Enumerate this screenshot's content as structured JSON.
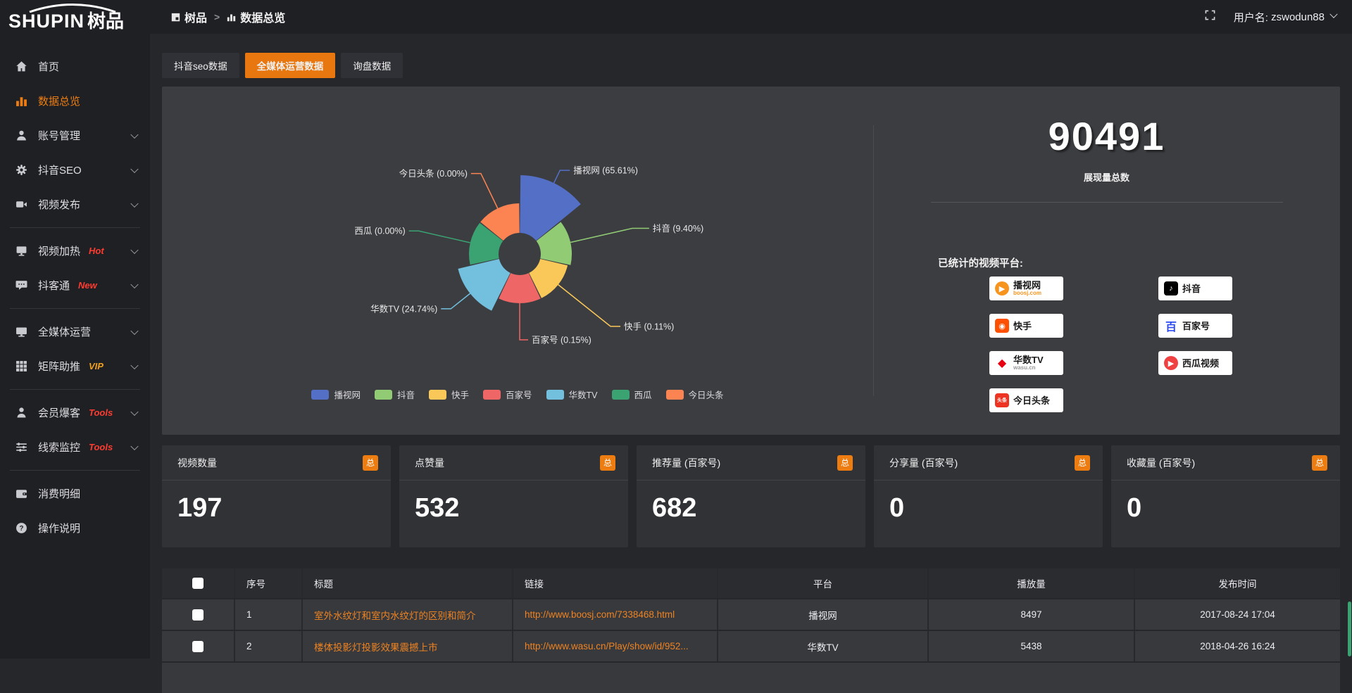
{
  "app": {
    "logo_text": "SHUPIN",
    "logo_suffix": "树品",
    "accent_color": "#ed7d11"
  },
  "header": {
    "breadcrumb": {
      "app": "树品",
      "page": "数据总览"
    },
    "username_label": "用户名:",
    "username": "zswodun88"
  },
  "sidebar": {
    "items": [
      {
        "label": "首页",
        "icon": "home-icon",
        "active": false,
        "chevron": false,
        "divider_after": false
      },
      {
        "label": "数据总览",
        "icon": "bar-chart-icon",
        "active": true,
        "chevron": false,
        "divider_after": false
      },
      {
        "label": "账号管理",
        "icon": "user-icon",
        "active": false,
        "chevron": true,
        "divider_after": false
      },
      {
        "label": "抖音SEO",
        "icon": "gear-icon",
        "active": false,
        "chevron": true,
        "divider_after": false
      },
      {
        "label": "视频发布",
        "icon": "video-camera-icon",
        "active": false,
        "chevron": true,
        "divider_after": true
      },
      {
        "label": "视频加热",
        "icon": "screen-icon",
        "badge": "Hot",
        "badge_color": "#ff3b30",
        "active": false,
        "chevron": true,
        "divider_after": false
      },
      {
        "label": "抖客通",
        "icon": "comment-icon",
        "badge": "New",
        "badge_color": "#ff3b30",
        "active": false,
        "chevron": true,
        "divider_after": true
      },
      {
        "label": "全媒体运营",
        "icon": "monitor-icon",
        "active": false,
        "chevron": true,
        "divider_after": false
      },
      {
        "label": "矩阵助推",
        "icon": "grid-icon",
        "badge": "VIP",
        "badge_color": "#f0a020",
        "active": false,
        "chevron": true,
        "divider_after": true
      },
      {
        "label": "会员爆客",
        "icon": "person-icon",
        "badge": "Tools",
        "badge_color": "#ff3b30",
        "active": false,
        "chevron": true,
        "divider_after": false
      },
      {
        "label": "线索监控",
        "icon": "sliders-icon",
        "badge": "Tools",
        "badge_color": "#ff3b30",
        "active": false,
        "chevron": true,
        "divider_after": true
      },
      {
        "label": "消费明细",
        "icon": "wallet-icon",
        "active": false,
        "chevron": false,
        "divider_after": false
      },
      {
        "label": "操作说明",
        "icon": "help-circle-icon",
        "active": false,
        "chevron": false,
        "divider_after": false
      }
    ]
  },
  "tabs": [
    {
      "label": "抖音seo数据",
      "active": false
    },
    {
      "label": "全媒体运营数据",
      "active": true
    },
    {
      "label": "询盘数据",
      "active": false
    }
  ],
  "chart_data": {
    "type": "pie",
    "variant": "nightingale-rose",
    "legend_position": "bottom",
    "items": [
      {
        "name": "播视网",
        "percent": 65.61,
        "label": "播视网 (65.61%)",
        "color": "#5470c6"
      },
      {
        "name": "抖音",
        "percent": 9.4,
        "label": "抖音 (9.40%)",
        "color": "#91cc75"
      },
      {
        "name": "快手",
        "percent": 0.11,
        "label": "快手 (0.11%)",
        "color": "#fac858"
      },
      {
        "name": "百家号",
        "percent": 0.15,
        "label": "百家号 (0.15%)",
        "color": "#ee6666"
      },
      {
        "name": "华数TV",
        "percent": 24.74,
        "label": "华数TV (24.74%)",
        "color": "#73c0de"
      },
      {
        "name": "西瓜",
        "percent": 0.0,
        "label": "西瓜 (0.00%)",
        "color": "#3ba272"
      },
      {
        "name": "今日头条",
        "percent": 0.0,
        "label": "今日头条 (0.00%)",
        "color": "#fc8452"
      }
    ]
  },
  "summary": {
    "total": "90491",
    "total_label": "展现量总数",
    "platforms_label": "已统计的视频平台:",
    "platforms": [
      {
        "name": "播视网",
        "sub": "boosj.com",
        "sub_color": "#f7941d",
        "icon_text": "▶",
        "icon_bg": "#f7941d",
        "icon_fg": "#ffffff",
        "icon_round": true
      },
      {
        "name": "快手",
        "sub": "",
        "icon_text": "◉",
        "icon_bg": "#ff5000",
        "icon_fg": "#ffffff",
        "icon_round": false
      },
      {
        "name": "华数TV",
        "sub": "wasu.cn",
        "sub_color": "#999999",
        "icon_text": "◆",
        "icon_bg": "#ffffff",
        "icon_fg": "#e60012",
        "icon_round": false
      },
      {
        "name": "今日头条",
        "sub": "",
        "icon_text": "头条",
        "icon_bg": "#ed3321",
        "icon_fg": "#ffffff",
        "icon_round": false
      },
      {
        "name": "抖音",
        "sub": "",
        "icon_text": "♪",
        "icon_bg": "#000000",
        "icon_fg": "#ffffff",
        "icon_round": false
      },
      {
        "name": "百家号",
        "sub": "",
        "icon_text": "百",
        "icon_bg": "#ffffff",
        "icon_fg": "#2d4bf0",
        "icon_round": false
      },
      {
        "name": "西瓜视频",
        "sub": "",
        "icon_text": "▶",
        "icon_bg": "#f04142",
        "icon_fg": "#ffffff",
        "icon_round": true
      }
    ]
  },
  "stat_cards": [
    {
      "label": "视频数量",
      "badge": "总",
      "value": "197"
    },
    {
      "label": "点赞量",
      "badge": "总",
      "value": "532"
    },
    {
      "label": "推荐量 (百家号)",
      "badge": "总",
      "value": "682"
    },
    {
      "label": "分享量 (百家号)",
      "badge": "总",
      "value": "0"
    },
    {
      "label": "收藏量 (百家号)",
      "badge": "总",
      "value": "0"
    }
  ],
  "table": {
    "headers": [
      "序号",
      "标题",
      "链接",
      "平台",
      "播放量",
      "发布时间"
    ],
    "rows": [
      {
        "no": "1",
        "title": "室外水纹灯和室内水纹灯的区别和简介",
        "link": "http://www.boosj.com/7338468.html",
        "platform": "播视网",
        "views": "8497",
        "time": "2017-08-24 17:04"
      },
      {
        "no": "2",
        "title": "楼体投影灯投影效果震撼上市",
        "link": "http://www.wasu.cn/Play/show/id/952...",
        "platform": "华数TV",
        "views": "5438",
        "time": "2018-04-26 16:24"
      }
    ]
  }
}
